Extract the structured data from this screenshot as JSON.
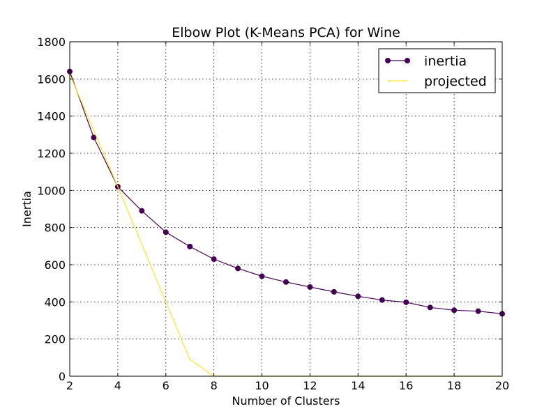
{
  "chart_data": {
    "type": "line",
    "title": "Elbow Plot (K-Means PCA) for Wine",
    "xlabel": "Number of Clusters",
    "ylabel": "Inertia",
    "xlim": [
      2,
      20
    ],
    "ylim": [
      0,
      1800
    ],
    "xticks": [
      2,
      4,
      6,
      8,
      10,
      12,
      14,
      16,
      18,
      20
    ],
    "yticks": [
      0,
      200,
      400,
      600,
      800,
      1000,
      1200,
      1400,
      1600,
      1800
    ],
    "grid": true,
    "legend_position": "top-right",
    "series": [
      {
        "name": "inertia",
        "color": "#440154",
        "marker": "circle",
        "x": [
          2,
          3,
          4,
          5,
          6,
          7,
          8,
          9,
          10,
          11,
          12,
          13,
          14,
          15,
          16,
          17,
          18,
          19,
          20
        ],
        "values": [
          1640,
          1285,
          1020,
          890,
          775,
          698,
          630,
          580,
          538,
          507,
          480,
          454,
          430,
          410,
          398,
          370,
          355,
          350,
          336
        ]
      },
      {
        "name": "projected",
        "color": "#fde725",
        "marker": "none",
        "x": [
          2,
          4,
          6,
          7,
          8,
          9,
          10,
          11,
          12,
          13,
          14,
          15,
          16,
          17,
          18,
          19,
          20
        ],
        "values": [
          1625,
          1020,
          400,
          90,
          0,
          0,
          0,
          0,
          0,
          0,
          0,
          0,
          0,
          0,
          0,
          0,
          0
        ]
      }
    ]
  }
}
